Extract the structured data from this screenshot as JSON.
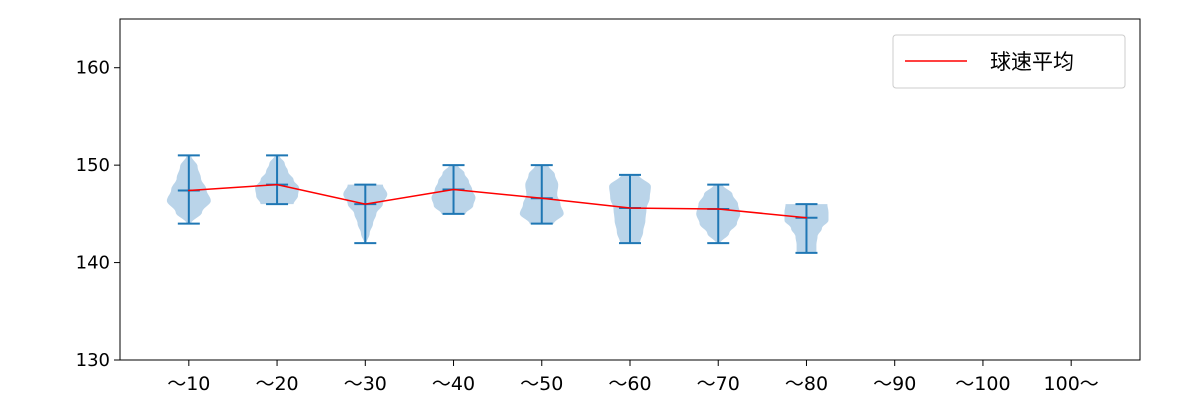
{
  "chart_data": {
    "type": "violin",
    "title": "",
    "xlabel": "",
    "ylabel": "",
    "categories": [
      "～10",
      "～20",
      "～30",
      "～40",
      "～50",
      "～60",
      "～70",
      "～80",
      "～90",
      "～100",
      "100～"
    ],
    "ylim": [
      130,
      165
    ],
    "yticks": [
      130,
      140,
      150,
      160
    ],
    "grid": false,
    "legend": {
      "placement": "top-right",
      "entries": [
        "球速平均"
      ]
    },
    "series": [
      {
        "name": "球速平均",
        "color": "#ff0000",
        "values": [
          147.4,
          148.0,
          146.0,
          147.5,
          146.6,
          145.6,
          145.5,
          144.6,
          null,
          null,
          null
        ]
      }
    ],
    "violins": {
      "color": "#1f77b4",
      "fill": "#bad4e9",
      "min": [
        144,
        146,
        142,
        145,
        144,
        142,
        142,
        141,
        null,
        null,
        null
      ],
      "max": [
        151,
        151,
        148,
        150,
        150,
        149,
        148,
        146,
        null,
        null,
        null
      ],
      "mean": [
        147.4,
        148.0,
        146.0,
        147.5,
        146.6,
        145.6,
        145.5,
        144.6,
        null,
        null,
        null
      ],
      "density_profile_bottom_to_top": [
        [
          0.1,
          0.6,
          1,
          0.8,
          0.55,
          0.4,
          0.1
        ],
        [
          0.75,
          0.95,
          1,
          0.75,
          0.5,
          0.35,
          0.1
        ],
        [
          0.05,
          0.2,
          0.35,
          0.5,
          0.8,
          1,
          0.8
        ],
        [
          0.55,
          0.9,
          1,
          0.85,
          0.7,
          0.5,
          0.2
        ],
        [
          0.55,
          1,
          0.85,
          0.7,
          0.75,
          0.6,
          0.3
        ],
        [
          0.45,
          0.6,
          0.7,
          0.75,
          0.9,
          0.95,
          0.4
        ],
        [
          0.1,
          0.5,
          0.85,
          1,
          0.9,
          0.65,
          0.2
        ],
        [
          0.45,
          0.45,
          0.5,
          0.7,
          1,
          1,
          0.95
        ],
        null,
        null,
        null
      ]
    }
  }
}
